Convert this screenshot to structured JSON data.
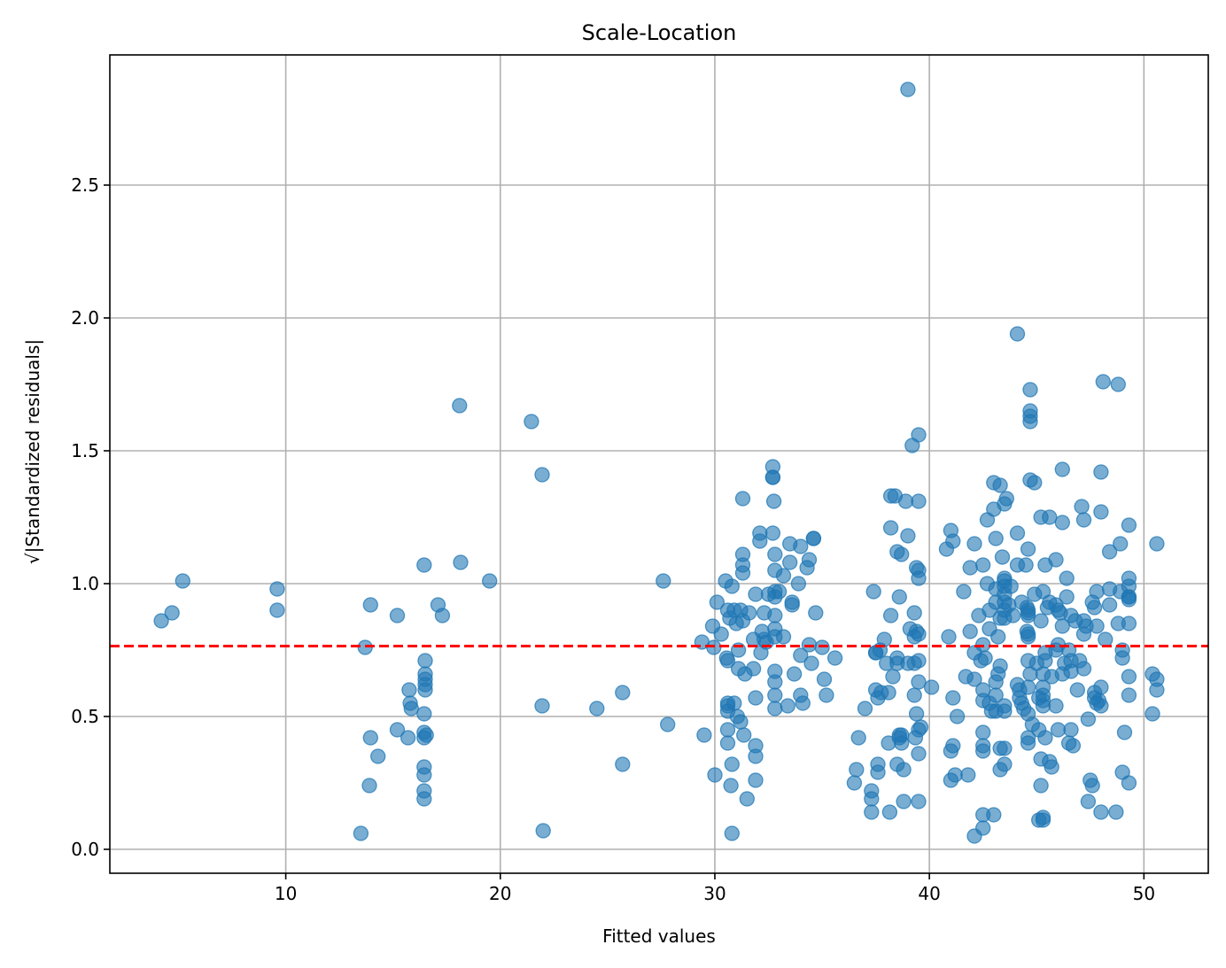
{
  "chart_data": {
    "type": "scatter",
    "title": "Scale-Location",
    "xlabel": "Fitted values",
    "ylabel": "√|Standardized residuals|",
    "xlim": [
      1.8,
      53.0
    ],
    "ylim": [
      -0.09,
      2.99
    ],
    "x_ticks": [
      10,
      20,
      30,
      40,
      50
    ],
    "x_tick_labels": [
      "10",
      "20",
      "30",
      "40",
      "50"
    ],
    "y_ticks": [
      0.0,
      0.5,
      1.0,
      1.5,
      2.0,
      2.5
    ],
    "y_tick_labels": [
      "0.0",
      "0.5",
      "1.0",
      "1.5",
      "2.0",
      "2.5"
    ],
    "grid": true,
    "reference_line": {
      "y": 0.765,
      "color": "#ff0000",
      "style": "dashed"
    },
    "point_color": "#1f77b4",
    "point_alpha": 0.6,
    "points": [
      [
        4.2,
        0.86
      ],
      [
        4.7,
        0.89
      ],
      [
        5.2,
        1.01
      ],
      [
        9.6,
        0.98
      ],
      [
        9.6,
        0.9
      ],
      [
        13.5,
        0.06
      ],
      [
        13.7,
        0.76
      ],
      [
        13.9,
        0.24
      ],
      [
        13.95,
        0.42
      ],
      [
        13.95,
        0.92
      ],
      [
        14.3,
        0.35
      ],
      [
        15.2,
        0.88
      ],
      [
        15.2,
        0.45
      ],
      [
        15.7,
        0.42
      ],
      [
        15.75,
        0.6
      ],
      [
        15.8,
        0.55
      ],
      [
        15.85,
        0.53
      ],
      [
        16.45,
        1.07
      ],
      [
        16.45,
        0.51
      ],
      [
        16.45,
        0.44
      ],
      [
        16.45,
        0.42
      ],
      [
        16.45,
        0.31
      ],
      [
        16.45,
        0.28
      ],
      [
        16.45,
        0.22
      ],
      [
        16.45,
        0.19
      ],
      [
        16.5,
        0.71
      ],
      [
        16.5,
        0.66
      ],
      [
        16.5,
        0.64
      ],
      [
        16.5,
        0.62
      ],
      [
        16.5,
        0.6
      ],
      [
        16.55,
        0.43
      ],
      [
        17.1,
        0.92
      ],
      [
        17.3,
        0.88
      ],
      [
        18.1,
        1.67
      ],
      [
        18.15,
        1.08
      ],
      [
        19.5,
        1.01
      ],
      [
        21.45,
        1.61
      ],
      [
        21.95,
        1.41
      ],
      [
        21.95,
        0.54
      ],
      [
        22.0,
        0.07
      ],
      [
        24.5,
        0.53
      ],
      [
        25.7,
        0.59
      ],
      [
        25.7,
        0.32
      ],
      [
        27.6,
        1.01
      ],
      [
        27.8,
        0.47
      ],
      [
        29.4,
        0.78
      ],
      [
        29.5,
        0.43
      ],
      [
        29.9,
        0.84
      ],
      [
        29.95,
        0.76
      ],
      [
        30.0,
        0.28
      ],
      [
        30.1,
        0.93
      ],
      [
        30.3,
        0.81
      ],
      [
        30.5,
        1.01
      ],
      [
        30.55,
        0.72
      ],
      [
        30.6,
        0.54
      ],
      [
        30.6,
        0.9
      ],
      [
        30.6,
        0.71
      ],
      [
        30.6,
        0.55
      ],
      [
        30.6,
        0.52
      ],
      [
        30.6,
        0.45
      ],
      [
        30.6,
        0.4
      ],
      [
        30.7,
        0.87
      ],
      [
        30.75,
        0.24
      ],
      [
        30.8,
        0.99
      ],
      [
        30.8,
        0.32
      ],
      [
        30.8,
        0.06
      ],
      [
        30.9,
        0.55
      ],
      [
        30.9,
        0.9
      ],
      [
        31.0,
        0.85
      ],
      [
        31.05,
        0.5
      ],
      [
        31.1,
        0.75
      ],
      [
        31.1,
        0.68
      ],
      [
        31.2,
        0.9
      ],
      [
        31.2,
        0.48
      ],
      [
        31.3,
        1.32
      ],
      [
        31.3,
        1.11
      ],
      [
        31.3,
        1.07
      ],
      [
        31.3,
        1.04
      ],
      [
        31.3,
        0.86
      ],
      [
        31.35,
        0.43
      ],
      [
        31.4,
        0.66
      ],
      [
        31.5,
        0.19
      ],
      [
        31.6,
        0.89
      ],
      [
        31.8,
        0.68
      ],
      [
        31.8,
        0.79
      ],
      [
        31.9,
        0.96
      ],
      [
        31.9,
        0.57
      ],
      [
        31.9,
        0.39
      ],
      [
        31.9,
        0.35
      ],
      [
        31.9,
        0.26
      ],
      [
        32.1,
        1.19
      ],
      [
        32.1,
        1.16
      ],
      [
        32.15,
        0.74
      ],
      [
        32.2,
        0.82
      ],
      [
        32.3,
        0.89
      ],
      [
        32.3,
        0.79
      ],
      [
        32.4,
        0.78
      ],
      [
        32.5,
        0.96
      ],
      [
        32.7,
        1.44
      ],
      [
        32.7,
        1.4
      ],
      [
        32.7,
        1.4
      ],
      [
        32.7,
        1.19
      ],
      [
        32.75,
        1.31
      ],
      [
        32.8,
        1.11
      ],
      [
        32.8,
        1.05
      ],
      [
        32.8,
        0.97
      ],
      [
        32.8,
        0.95
      ],
      [
        32.8,
        0.88
      ],
      [
        32.8,
        0.83
      ],
      [
        32.8,
        0.8
      ],
      [
        32.8,
        0.67
      ],
      [
        32.8,
        0.63
      ],
      [
        32.8,
        0.58
      ],
      [
        32.8,
        0.53
      ],
      [
        33.0,
        0.97
      ],
      [
        33.2,
        1.03
      ],
      [
        33.2,
        0.8
      ],
      [
        33.4,
        0.54
      ],
      [
        33.5,
        1.15
      ],
      [
        33.5,
        1.08
      ],
      [
        33.6,
        0.93
      ],
      [
        33.6,
        0.92
      ],
      [
        33.7,
        0.66
      ],
      [
        33.9,
        1.0
      ],
      [
        34.0,
        1.14
      ],
      [
        34.0,
        0.73
      ],
      [
        34.0,
        0.58
      ],
      [
        34.1,
        0.55
      ],
      [
        34.3,
        1.06
      ],
      [
        34.4,
        1.09
      ],
      [
        34.4,
        0.77
      ],
      [
        34.5,
        0.7
      ],
      [
        34.6,
        1.17
      ],
      [
        34.6,
        1.17
      ],
      [
        34.7,
        0.89
      ],
      [
        35.0,
        0.76
      ],
      [
        35.1,
        0.64
      ],
      [
        35.2,
        0.58
      ],
      [
        35.6,
        0.72
      ],
      [
        36.5,
        0.25
      ],
      [
        36.6,
        0.3
      ],
      [
        36.7,
        0.42
      ],
      [
        37.0,
        0.53
      ],
      [
        37.3,
        0.22
      ],
      [
        37.3,
        0.19
      ],
      [
        37.3,
        0.14
      ],
      [
        37.4,
        0.97
      ],
      [
        37.5,
        0.74
      ],
      [
        37.5,
        0.74
      ],
      [
        37.5,
        0.6
      ],
      [
        37.6,
        0.57
      ],
      [
        37.6,
        0.29
      ],
      [
        37.6,
        0.32
      ],
      [
        37.7,
        0.75
      ],
      [
        37.75,
        0.59
      ],
      [
        37.9,
        0.79
      ],
      [
        38.0,
        0.7
      ],
      [
        38.1,
        0.59
      ],
      [
        38.1,
        0.4
      ],
      [
        38.15,
        0.14
      ],
      [
        38.2,
        1.33
      ],
      [
        38.2,
        1.21
      ],
      [
        38.2,
        0.88
      ],
      [
        38.3,
        0.65
      ],
      [
        38.4,
        1.33
      ],
      [
        38.5,
        1.12
      ],
      [
        38.5,
        0.72
      ],
      [
        38.5,
        0.7
      ],
      [
        38.5,
        0.32
      ],
      [
        38.6,
        0.95
      ],
      [
        38.6,
        0.43
      ],
      [
        38.6,
        0.42
      ],
      [
        38.7,
        1.11
      ],
      [
        38.7,
        0.43
      ],
      [
        38.7,
        0.4
      ],
      [
        38.8,
        0.3
      ],
      [
        38.8,
        0.18
      ],
      [
        38.9,
        1.31
      ],
      [
        39.0,
        0.7
      ],
      [
        39.0,
        1.18
      ],
      [
        39.0,
        2.86
      ],
      [
        39.1,
        0.83
      ],
      [
        39.2,
        1.52
      ],
      [
        39.3,
        0.89
      ],
      [
        39.3,
        0.8
      ],
      [
        39.3,
        0.7
      ],
      [
        39.3,
        0.58
      ],
      [
        39.35,
        0.42
      ],
      [
        39.4,
        1.06
      ],
      [
        39.4,
        0.82
      ],
      [
        39.4,
        0.51
      ],
      [
        39.5,
        1.56
      ],
      [
        39.5,
        1.31
      ],
      [
        39.5,
        1.05
      ],
      [
        39.5,
        1.02
      ],
      [
        39.5,
        0.81
      ],
      [
        39.5,
        0.71
      ],
      [
        39.5,
        0.63
      ],
      [
        39.5,
        0.45
      ],
      [
        39.5,
        0.36
      ],
      [
        39.5,
        0.18
      ],
      [
        39.6,
        0.46
      ],
      [
        40.1,
        0.61
      ],
      [
        40.8,
        1.13
      ],
      [
        40.9,
        0.8
      ],
      [
        41.0,
        1.2
      ],
      [
        41.0,
        0.37
      ],
      [
        41.0,
        0.26
      ],
      [
        41.1,
        1.16
      ],
      [
        41.1,
        0.57
      ],
      [
        41.1,
        0.39
      ],
      [
        41.2,
        0.28
      ],
      [
        41.3,
        0.5
      ],
      [
        41.6,
        0.97
      ],
      [
        41.7,
        0.65
      ],
      [
        41.8,
        0.28
      ],
      [
        41.9,
        1.06
      ],
      [
        41.9,
        0.82
      ],
      [
        42.1,
        1.15
      ],
      [
        42.1,
        0.74
      ],
      [
        42.1,
        0.64
      ],
      [
        42.1,
        0.05
      ],
      [
        42.3,
        0.88
      ],
      [
        42.4,
        0.71
      ],
      [
        42.5,
        1.07
      ],
      [
        42.5,
        0.77
      ],
      [
        42.5,
        0.6
      ],
      [
        42.5,
        0.56
      ],
      [
        42.5,
        0.44
      ],
      [
        42.5,
        0.39
      ],
      [
        42.5,
        0.37
      ],
      [
        42.5,
        0.13
      ],
      [
        42.5,
        0.08
      ],
      [
        42.6,
        0.72
      ],
      [
        42.7,
        1.24
      ],
      [
        42.7,
        1.0
      ],
      [
        42.8,
        0.83
      ],
      [
        42.8,
        0.9
      ],
      [
        42.8,
        0.55
      ],
      [
        42.9,
        0.52
      ],
      [
        43.0,
        1.38
      ],
      [
        43.0,
        1.28
      ],
      [
        43.0,
        0.13
      ],
      [
        43.1,
        0.98
      ],
      [
        43.1,
        0.93
      ],
      [
        43.1,
        1.17
      ],
      [
        43.1,
        0.63
      ],
      [
        43.1,
        0.58
      ],
      [
        43.1,
        0.52
      ],
      [
        43.2,
        0.8
      ],
      [
        43.2,
        0.66
      ],
      [
        43.3,
        1.37
      ],
      [
        43.3,
        0.87
      ],
      [
        43.3,
        0.69
      ],
      [
        43.3,
        0.38
      ],
      [
        43.3,
        0.3
      ],
      [
        43.4,
        1.1
      ],
      [
        43.5,
        1.3
      ],
      [
        43.5,
        1.02
      ],
      [
        43.5,
        1.01
      ],
      [
        43.5,
        0.99
      ],
      [
        43.5,
        0.96
      ],
      [
        43.5,
        0.93
      ],
      [
        43.5,
        0.9
      ],
      [
        43.5,
        0.87
      ],
      [
        43.5,
        0.54
      ],
      [
        43.5,
        0.52
      ],
      [
        43.5,
        0.38
      ],
      [
        43.5,
        0.32
      ],
      [
        43.6,
        1.32
      ],
      [
        43.7,
        0.92
      ],
      [
        43.8,
        0.99
      ],
      [
        43.9,
        0.88
      ],
      [
        44.1,
        1.94
      ],
      [
        44.1,
        1.19
      ],
      [
        44.1,
        1.07
      ],
      [
        44.1,
        0.62
      ],
      [
        44.2,
        0.6
      ],
      [
        44.2,
        0.57
      ],
      [
        44.3,
        0.93
      ],
      [
        44.3,
        0.55
      ],
      [
        44.4,
        0.53
      ],
      [
        44.5,
        1.07
      ],
      [
        44.55,
        0.91
      ],
      [
        44.55,
        0.82
      ],
      [
        44.6,
        1.13
      ],
      [
        44.6,
        0.9
      ],
      [
        44.6,
        0.89
      ],
      [
        44.6,
        0.88
      ],
      [
        44.6,
        0.81
      ],
      [
        44.6,
        0.8
      ],
      [
        44.6,
        0.71
      ],
      [
        44.6,
        0.61
      ],
      [
        44.6,
        0.51
      ],
      [
        44.6,
        0.42
      ],
      [
        44.6,
        0.4
      ],
      [
        44.7,
        1.73
      ],
      [
        44.7,
        1.65
      ],
      [
        44.7,
        1.63
      ],
      [
        44.7,
        1.61
      ],
      [
        44.7,
        1.39
      ],
      [
        44.7,
        0.66
      ],
      [
        44.8,
        0.47
      ],
      [
        44.9,
        1.38
      ],
      [
        44.9,
        0.96
      ],
      [
        45.0,
        0.7
      ],
      [
        45.1,
        0.57
      ],
      [
        45.1,
        0.45
      ],
      [
        45.1,
        0.11
      ],
      [
        45.2,
        1.25
      ],
      [
        45.2,
        0.86
      ],
      [
        45.2,
        0.34
      ],
      [
        45.2,
        0.24
      ],
      [
        45.3,
        0.97
      ],
      [
        45.3,
        0.66
      ],
      [
        45.3,
        0.61
      ],
      [
        45.3,
        0.58
      ],
      [
        45.3,
        0.56
      ],
      [
        45.3,
        0.54
      ],
      [
        45.3,
        0.12
      ],
      [
        45.3,
        0.11
      ],
      [
        45.4,
        1.07
      ],
      [
        45.4,
        0.74
      ],
      [
        45.4,
        0.71
      ],
      [
        45.4,
        0.42
      ],
      [
        45.5,
        0.91
      ],
      [
        45.6,
        0.93
      ],
      [
        45.6,
        1.25
      ],
      [
        45.6,
        0.33
      ],
      [
        45.7,
        0.65
      ],
      [
        45.7,
        0.31
      ],
      [
        45.9,
        1.09
      ],
      [
        45.9,
        0.92
      ],
      [
        45.9,
        0.75
      ],
      [
        45.9,
        0.54
      ],
      [
        46.0,
        0.77
      ],
      [
        46.0,
        0.9
      ],
      [
        46.0,
        0.45
      ],
      [
        46.1,
        0.89
      ],
      [
        46.2,
        1.43
      ],
      [
        46.2,
        1.23
      ],
      [
        46.2,
        0.84
      ],
      [
        46.2,
        0.66
      ],
      [
        46.3,
        0.7
      ],
      [
        46.4,
        1.02
      ],
      [
        46.4,
        0.95
      ],
      [
        46.5,
        0.75
      ],
      [
        46.5,
        0.4
      ],
      [
        46.6,
        0.88
      ],
      [
        46.6,
        0.71
      ],
      [
        46.6,
        0.67
      ],
      [
        46.6,
        0.45
      ],
      [
        46.7,
        0.39
      ],
      [
        46.8,
        0.86
      ],
      [
        46.9,
        0.6
      ],
      [
        47.0,
        0.71
      ],
      [
        47.1,
        1.29
      ],
      [
        47.2,
        0.86
      ],
      [
        47.2,
        1.24
      ],
      [
        47.2,
        0.81
      ],
      [
        47.2,
        0.68
      ],
      [
        47.3,
        0.84
      ],
      [
        47.4,
        0.49
      ],
      [
        47.4,
        0.18
      ],
      [
        47.5,
        0.26
      ],
      [
        47.6,
        0.93
      ],
      [
        47.6,
        0.24
      ],
      [
        47.7,
        0.91
      ],
      [
        47.7,
        0.59
      ],
      [
        47.7,
        0.57
      ],
      [
        47.8,
        0.97
      ],
      [
        47.8,
        0.84
      ],
      [
        47.8,
        0.55
      ],
      [
        47.9,
        0.56
      ],
      [
        48.0,
        1.42
      ],
      [
        48.0,
        1.27
      ],
      [
        48.0,
        0.61
      ],
      [
        48.0,
        0.54
      ],
      [
        48.0,
        0.14
      ],
      [
        48.1,
        1.76
      ],
      [
        48.2,
        0.79
      ],
      [
        48.4,
        1.12
      ],
      [
        48.4,
        0.98
      ],
      [
        48.4,
        0.92
      ],
      [
        48.7,
        0.14
      ],
      [
        48.8,
        1.75
      ],
      [
        48.8,
        0.85
      ],
      [
        48.9,
        1.15
      ],
      [
        48.9,
        0.97
      ],
      [
        49.0,
        0.75
      ],
      [
        49.0,
        0.72
      ],
      [
        49.0,
        0.29
      ],
      [
        49.1,
        0.44
      ],
      [
        49.3,
        1.22
      ],
      [
        49.3,
        1.02
      ],
      [
        49.3,
        0.99
      ],
      [
        49.3,
        0.95
      ],
      [
        49.3,
        0.95
      ],
      [
        49.3,
        0.94
      ],
      [
        49.3,
        0.85
      ],
      [
        49.3,
        0.65
      ],
      [
        49.3,
        0.58
      ],
      [
        49.3,
        0.25
      ],
      [
        50.4,
        0.66
      ],
      [
        50.4,
        0.51
      ],
      [
        50.6,
        0.64
      ],
      [
        50.6,
        0.6
      ],
      [
        50.6,
        1.15
      ]
    ]
  }
}
